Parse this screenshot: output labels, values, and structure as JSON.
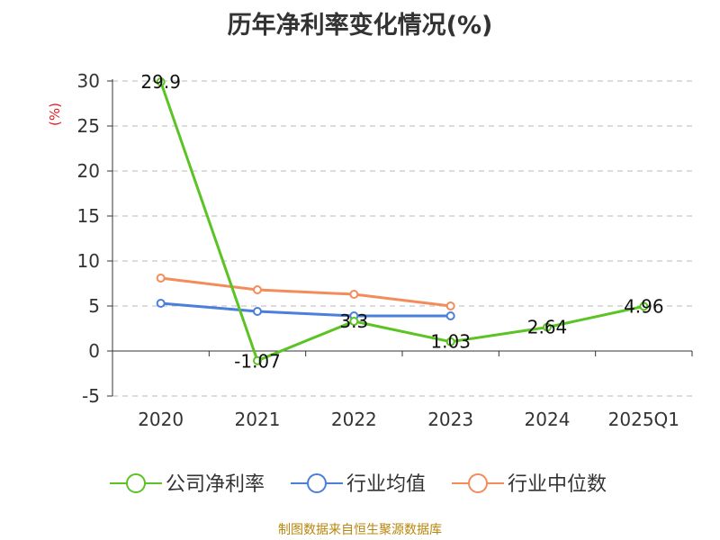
{
  "chart_data": {
    "type": "line",
    "title": "历年净利率变化情况(%)",
    "ylabel": "(%)",
    "xlabel": "",
    "categories": [
      "2020",
      "2021",
      "2022",
      "2023",
      "2024",
      "2025Q1"
    ],
    "ylim": [
      -5,
      30
    ],
    "yticks": [
      -5,
      0,
      5,
      10,
      15,
      20,
      25,
      30
    ],
    "grid": true,
    "legend_position": "bottom",
    "series": [
      {
        "name": "公司净利率",
        "color": "#5bc324",
        "values": [
          29.9,
          -1.07,
          3.3,
          1.03,
          2.64,
          4.96
        ],
        "labels": [
          "29.9",
          "-1.07",
          "3.3",
          "1.03",
          "2.64",
          "4.96"
        ]
      },
      {
        "name": "行业均值",
        "color": "#4a7fdc",
        "values": [
          5.3,
          4.4,
          3.9,
          3.9,
          null,
          null
        ]
      },
      {
        "name": "行业中位数",
        "color": "#f38c5a",
        "values": [
          8.1,
          6.8,
          6.3,
          5.0,
          null,
          null
        ]
      }
    ]
  },
  "source": "制图数据来自恒生聚源数据库"
}
